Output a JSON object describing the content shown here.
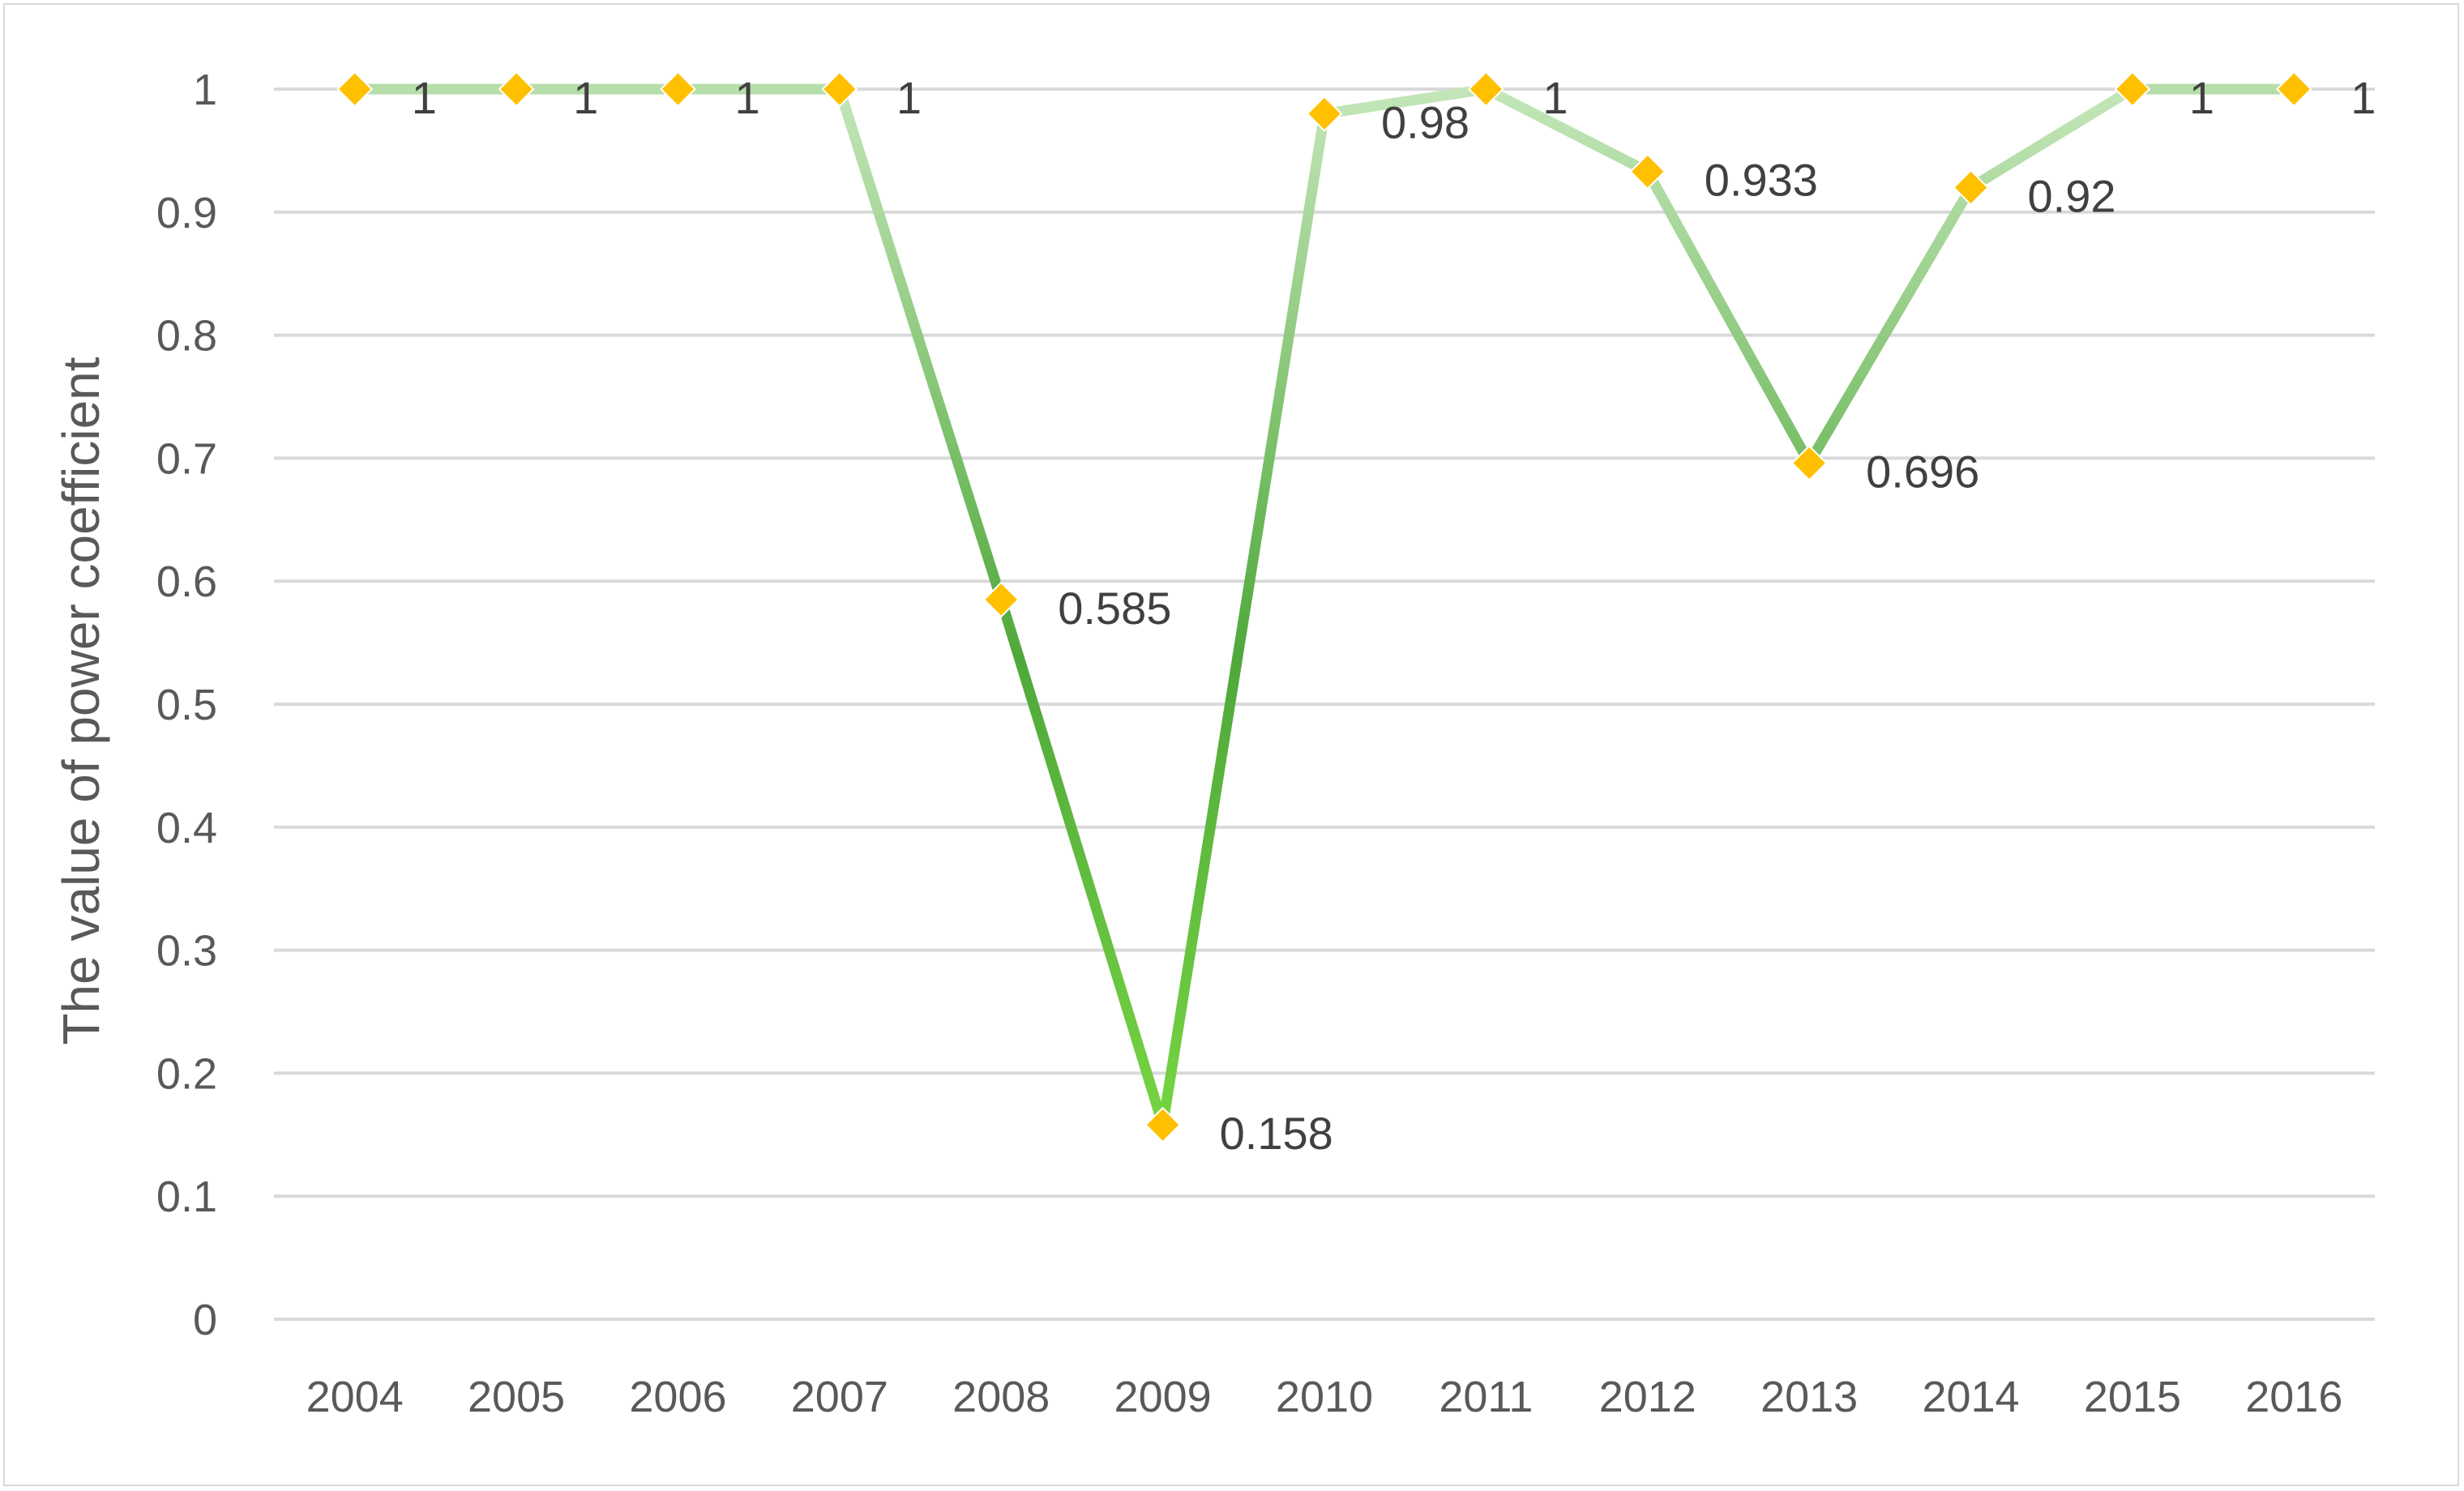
{
  "chart_data": {
    "type": "line",
    "title": "",
    "xlabel": "",
    "ylabel": "The value of power coefficient",
    "categories": [
      "2004",
      "2005",
      "2006",
      "2007",
      "2008",
      "2009",
      "2010",
      "2011",
      "2012",
      "2013",
      "2014",
      "2015",
      "2016"
    ],
    "series": [
      {
        "values": [
          1,
          1,
          1,
          1,
          0.585,
          0.158,
          0.98,
          1,
          0.933,
          0.696,
          0.92,
          1,
          1
        ],
        "labels": [
          "1",
          "1",
          "1",
          "1",
          "0.585",
          "0.158",
          "0.98",
          "1",
          "0.933",
          "0.696",
          "0.92",
          "1",
          "1"
        ]
      }
    ],
    "ylim": [
      0,
      1
    ],
    "yticks": [
      "0",
      "0.1",
      "0.2",
      "0.3",
      "0.4",
      "0.5",
      "0.6",
      "0.7",
      "0.8",
      "0.9",
      "1"
    ],
    "grid": true,
    "legend": "none",
    "colors": {
      "line_light": "#b5deaa",
      "line_mid": "#7fc56e",
      "line_dark": "#4fa83a",
      "line_bright": "#6fd13e",
      "marker": "#ffc000",
      "grid": "#d9d9d9",
      "text": "#595959"
    }
  }
}
